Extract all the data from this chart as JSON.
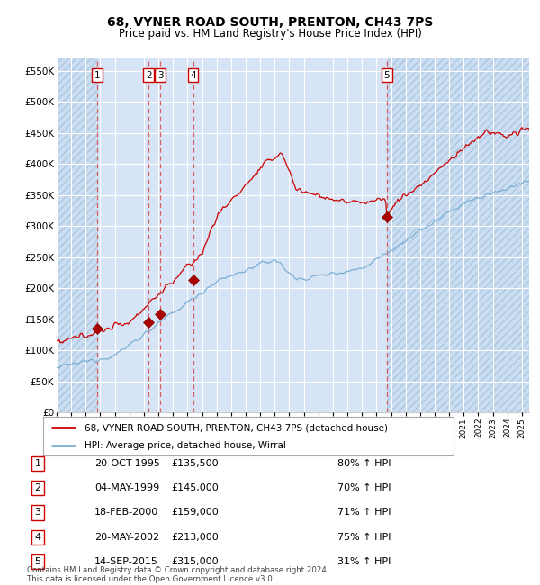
{
  "title": "68, VYNER ROAD SOUTH, PRENTON, CH43 7PS",
  "subtitle": "Price paid vs. HM Land Registry's House Price Index (HPI)",
  "ylim": [
    0,
    570000
  ],
  "yticks": [
    0,
    50000,
    100000,
    150000,
    200000,
    250000,
    300000,
    350000,
    400000,
    450000,
    500000,
    550000
  ],
  "ytick_labels": [
    "£0",
    "£50K",
    "£100K",
    "£150K",
    "£200K",
    "£250K",
    "£300K",
    "£350K",
    "£400K",
    "£450K",
    "£500K",
    "£550K"
  ],
  "bg_color": "#d6e4f5",
  "grid_color": "#ffffff",
  "red_line_color": "#cc0000",
  "blue_line_color": "#7bafd4",
  "marker_color": "#aa0000",
  "dashed_line_color": "#dd4444",
  "transactions": [
    {
      "num": 1,
      "date": "20-OCT-1995",
      "year": 1995.79,
      "price": 135500
    },
    {
      "num": 2,
      "date": "04-MAY-1999",
      "year": 1999.34,
      "price": 145000
    },
    {
      "num": 3,
      "date": "18-FEB-2000",
      "year": 2000.13,
      "price": 159000
    },
    {
      "num": 4,
      "date": "20-MAY-2002",
      "year": 2002.38,
      "price": 213000
    },
    {
      "num": 5,
      "date": "14-SEP-2015",
      "year": 2015.71,
      "price": 315000
    }
  ],
  "legend_red": "68, VYNER ROAD SOUTH, PRENTON, CH43 7PS (detached house)",
  "legend_blue": "HPI: Average price, detached house, Wirral",
  "footer": "Contains HM Land Registry data © Crown copyright and database right 2024.\nThis data is licensed under the Open Government Licence v3.0.",
  "table_rows": [
    [
      "1",
      "20-OCT-1995",
      "£135,500",
      "80% ↑ HPI"
    ],
    [
      "2",
      "04-MAY-1999",
      "£145,000",
      "70% ↑ HPI"
    ],
    [
      "3",
      "18-FEB-2000",
      "£159,000",
      "71% ↑ HPI"
    ],
    [
      "4",
      "20-MAY-2002",
      "£213,000",
      "75% ↑ HPI"
    ],
    [
      "5",
      "14-SEP-2015",
      "£315,000",
      "31% ↑ HPI"
    ]
  ]
}
